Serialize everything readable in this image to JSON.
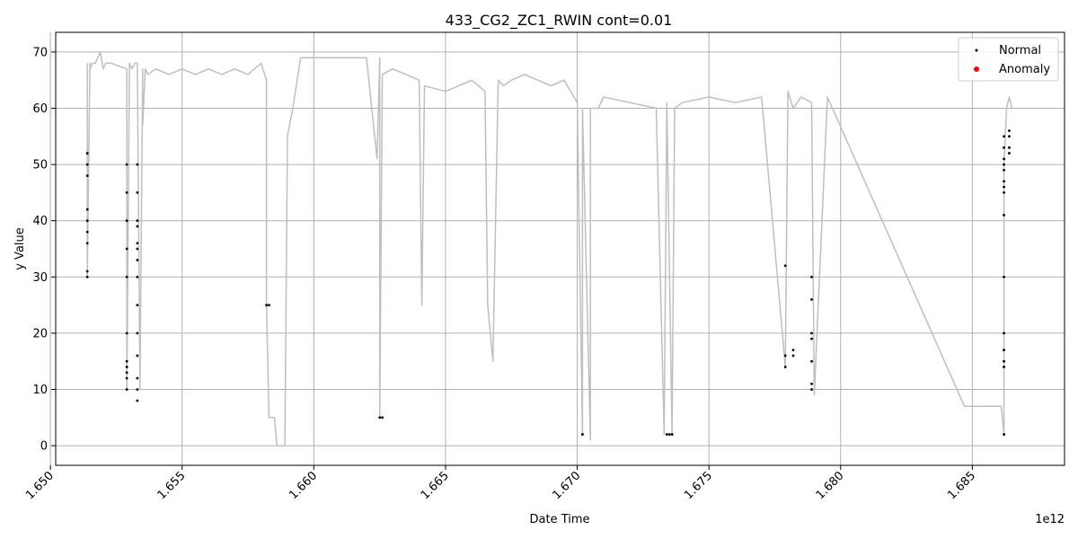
{
  "chart_data": {
    "type": "scatter",
    "title": "433_CG2_ZC1_RWIN cont=0.01",
    "xlabel": "Date Time",
    "ylabel": "y Value",
    "x_offset_label": "1e12",
    "xlim": [
      1.6502,
      1.6885
    ],
    "ylim": [
      -3.5,
      73.5
    ],
    "x_ticks": [
      1.65,
      1.655,
      1.66,
      1.665,
      1.67,
      1.675,
      1.68,
      1.685
    ],
    "x_tick_labels": [
      "1.650",
      "1.655",
      "1.660",
      "1.665",
      "1.670",
      "1.675",
      "1.680",
      "1.685"
    ],
    "y_ticks": [
      0,
      10,
      20,
      30,
      40,
      50,
      60,
      70
    ],
    "y_tick_labels": [
      "0",
      "10",
      "20",
      "30",
      "40",
      "50",
      "60",
      "70"
    ],
    "grid": true,
    "legend_position": "top-right",
    "legend": [
      {
        "label": "Normal",
        "color": "#000000"
      },
      {
        "label": "Anomaly",
        "color": "#ff0000"
      }
    ],
    "line_color": "#bfbfbf",
    "line_series": {
      "name": "",
      "x": [
        1.6514,
        1.6514,
        1.6515,
        1.6515,
        1.6516,
        1.6517,
        1.6518,
        1.6519,
        1.652,
        1.6521,
        1.6523,
        1.6529,
        1.6529,
        1.653,
        1.6531,
        1.6532,
        1.6533,
        1.6534,
        1.6535,
        1.6535,
        1.6536,
        1.6537,
        1.654,
        1.6545,
        1.655,
        1.6555,
        1.656,
        1.6565,
        1.657,
        1.6575,
        1.658,
        1.6582,
        1.6582,
        1.6583,
        1.6583,
        1.6585,
        1.6586,
        1.6589,
        1.659,
        1.6592,
        1.6595,
        1.66,
        1.661,
        1.662,
        1.6624,
        1.6625,
        1.6625,
        1.6626,
        1.663,
        1.664,
        1.6641,
        1.6642,
        1.665,
        1.6655,
        1.666,
        1.6665,
        1.6666,
        1.6668,
        1.667,
        1.6672,
        1.6675,
        1.668,
        1.6685,
        1.669,
        1.6695,
        1.67,
        1.6702,
        1.6702,
        1.6705,
        1.6705,
        1.6708,
        1.671,
        1.672,
        1.673,
        1.6733,
        1.6734,
        1.6736,
        1.6737,
        1.674,
        1.675,
        1.676,
        1.677,
        1.6779,
        1.678,
        1.6782,
        1.6785,
        1.6789,
        1.679,
        1.6795,
        1.6847,
        1.6861,
        1.6862,
        1.6862,
        1.6863,
        1.6864,
        1.6865
      ],
      "y": [
        68,
        30,
        68,
        67,
        68,
        68,
        69,
        70,
        67,
        68,
        68,
        67,
        10,
        68,
        67,
        68,
        68,
        10,
        67,
        57,
        67,
        66,
        67,
        66,
        67,
        66,
        67,
        66,
        67,
        66,
        68,
        65,
        25,
        5,
        5,
        5,
        0,
        0,
        55,
        60,
        69,
        69,
        69,
        69,
        51,
        69,
        5,
        66,
        67,
        65,
        25,
        64,
        63,
        64,
        65,
        63,
        25,
        15,
        65,
        64,
        65,
        66,
        65,
        64,
        65,
        61,
        2,
        60,
        1,
        60,
        60,
        62,
        61,
        60,
        2,
        61,
        2,
        60,
        61,
        62,
        61,
        62,
        14,
        63,
        60,
        62,
        61,
        9,
        62,
        7,
        7,
        2,
        50,
        60,
        62,
        60
      ]
    },
    "scatter_points": {
      "name": "Normal",
      "x": [
        1.6514,
        1.6514,
        1.6514,
        1.6514,
        1.6514,
        1.6514,
        1.6514,
        1.6514,
        1.6514,
        1.6529,
        1.6529,
        1.6529,
        1.6529,
        1.6529,
        1.6529,
        1.6529,
        1.6529,
        1.6529,
        1.6529,
        1.6529,
        1.6533,
        1.6533,
        1.6533,
        1.6533,
        1.6533,
        1.6533,
        1.6533,
        1.6533,
        1.6533,
        1.6533,
        1.6533,
        1.6533,
        1.6533,
        1.6533,
        1.6582,
        1.6583,
        1.6625,
        1.6626,
        1.6702,
        1.6734,
        1.6735,
        1.6736,
        1.6779,
        1.6779,
        1.6779,
        1.6782,
        1.6782,
        1.6789,
        1.6789,
        1.6789,
        1.6789,
        1.6789,
        1.6789,
        1.6789,
        1.6862,
        1.6862,
        1.6862,
        1.6862,
        1.6862,
        1.6862,
        1.6862,
        1.6862,
        1.6862,
        1.6862,
        1.6862,
        1.6862,
        1.6862,
        1.6862,
        1.6862,
        1.6864,
        1.6864,
        1.6864,
        1.6864
      ],
      "y": [
        52,
        50,
        48,
        42,
        40,
        38,
        36,
        31,
        30,
        50,
        45,
        40,
        35,
        30,
        20,
        15,
        14,
        13,
        12,
        10,
        50,
        45,
        40,
        39,
        36,
        35,
        33,
        30,
        25,
        20,
        16,
        12,
        10,
        8,
        25,
        25,
        5,
        5,
        2,
        2,
        2,
        2,
        32,
        16,
        14,
        17,
        16,
        30,
        26,
        20,
        19,
        15,
        11,
        10,
        55,
        53,
        51,
        50,
        49,
        47,
        46,
        45,
        41,
        30,
        20,
        17,
        15,
        14,
        2,
        56,
        55,
        53,
        52
      ]
    },
    "anomaly_points": {
      "name": "Anomaly",
      "x": [],
      "y": []
    }
  }
}
